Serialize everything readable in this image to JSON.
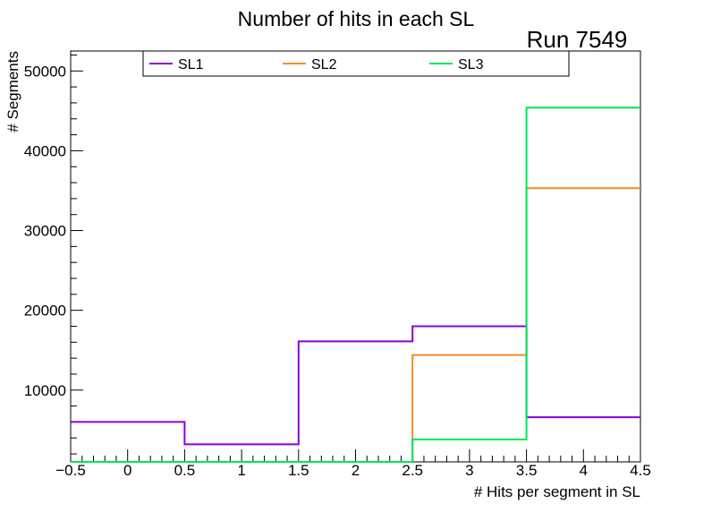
{
  "chart_data": {
    "type": "step-histogram",
    "title": "Number of hits in each SL",
    "annotation": "Run 7549",
    "xlabel": "# Hits per segment in SL",
    "ylabel": "# Segments",
    "xlim": [
      -0.5,
      4.5
    ],
    "ylim": [
      1000,
      52500
    ],
    "bin_edges": [
      -0.5,
      0.5,
      1.5,
      2.5,
      3.5,
      4.5
    ],
    "x_ticks": [
      -0.5,
      0,
      0.5,
      1,
      1.5,
      2,
      2.5,
      3,
      3.5,
      4,
      4.5
    ],
    "x_tick_labels": [
      "−0.5",
      "0",
      "0.5",
      "1",
      "1.5",
      "2",
      "2.5",
      "3",
      "3.5",
      "4",
      "4.5"
    ],
    "y_ticks": [
      10000,
      20000,
      30000,
      40000,
      50000
    ],
    "y_tick_labels": [
      "10000",
      "20000",
      "30000",
      "40000",
      "50000"
    ],
    "series": [
      {
        "name": "SL1",
        "color": "#8c00d4",
        "values": [
          6000,
          3200,
          16100,
          18000,
          6600
        ]
      },
      {
        "name": "SL2",
        "color": "#f28c28",
        "values": [
          0,
          0,
          0,
          14400,
          35300
        ]
      },
      {
        "name": "SL3",
        "color": "#00e65c",
        "values": [
          0,
          0,
          0,
          3800,
          45400
        ]
      }
    ]
  }
}
